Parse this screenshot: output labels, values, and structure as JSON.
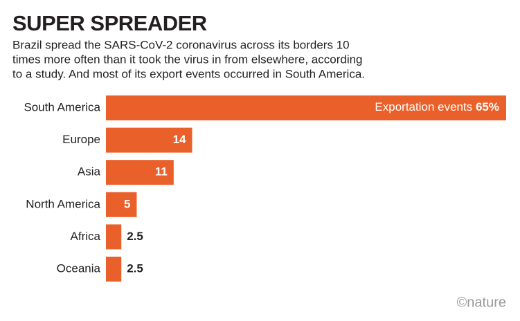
{
  "chart_data": {
    "type": "bar",
    "orientation": "horizontal",
    "title": "SUPER SPREADER",
    "subtitle": [
      "Brazil spread the SARS-CoV-2 coronavirus across its borders 10",
      "times more often than it took the virus in from elsewhere, according",
      "to a study. And most of its export events occurred in South America."
    ],
    "categories": [
      "South America",
      "Europe",
      "Asia",
      "North America",
      "Africa",
      "Oceania"
    ],
    "values": [
      65,
      14,
      11,
      5,
      2.5,
      2.5
    ],
    "value_labels": [
      "65%",
      "14",
      "11",
      "5",
      "2.5",
      "2.5"
    ],
    "annotation": "Exportation events",
    "color": "#e9602a",
    "source": "©nature"
  }
}
